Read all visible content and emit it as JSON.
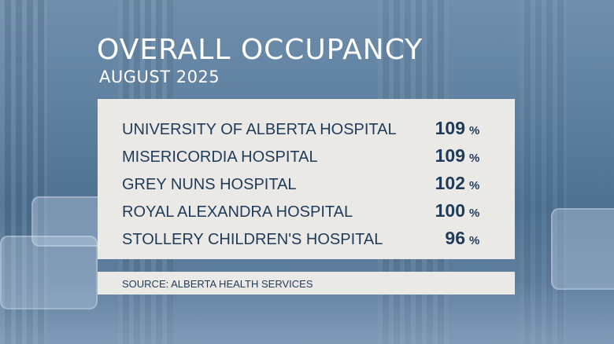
{
  "header": {
    "title": "OVERALL OCCUPANCY",
    "subtitle": "AUGUST 2025"
  },
  "table": {
    "rows": [
      {
        "hospital": "UNIVERSITY OF ALBERTA HOSPITAL",
        "value": "109",
        "unit": "%"
      },
      {
        "hospital": "MISERICORDIA HOSPITAL",
        "value": "109",
        "unit": "%"
      },
      {
        "hospital": "GREY NUNS HOSPITAL",
        "value": "102",
        "unit": "%"
      },
      {
        "hospital": "ROYAL ALEXANDRA HOSPITAL",
        "value": "100",
        "unit": "%"
      },
      {
        "hospital": "STOLLERY CHILDREN'S HOSPITAL",
        "value": "96",
        "unit": "%"
      }
    ]
  },
  "footer": {
    "source": "SOURCE: ALBERTA HEALTH SERVICES"
  },
  "colors": {
    "text_dark": "#1f3b5a",
    "panel": "#ebe9e6",
    "background": "#5d7f9f"
  }
}
